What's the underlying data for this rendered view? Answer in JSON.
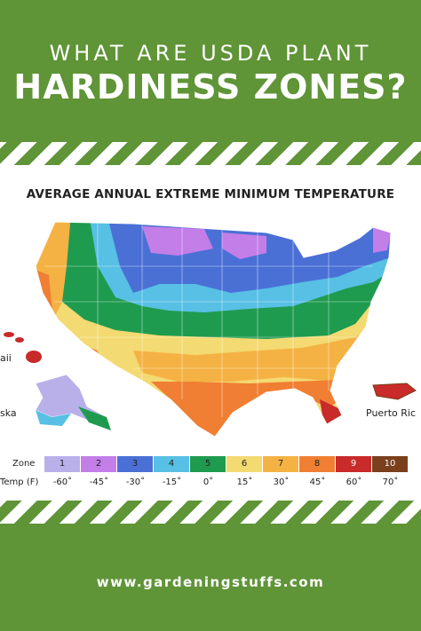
{
  "header": {
    "subtitle": "WHAT ARE USDA PLANT",
    "title": "HARDINESS ZONES?"
  },
  "map": {
    "title": "AVERAGE ANNUAL EXTREME MINIMUM TEMPERATURE",
    "labels": {
      "hawaii": "aii",
      "alaska": "ska",
      "puerto_rico": "Puerto Ric"
    }
  },
  "legend": {
    "zone_label": "Zone",
    "temp_label": "Temp (F)",
    "zones": [
      {
        "zone": "1",
        "temp": "-60˚",
        "color": "#b9b0ea"
      },
      {
        "zone": "2",
        "temp": "-45˚",
        "color": "#c37ee8"
      },
      {
        "zone": "3",
        "temp": "-30˚",
        "color": "#4a70d6"
      },
      {
        "zone": "4",
        "temp": "-15˚",
        "color": "#57c0e4"
      },
      {
        "zone": "5",
        "temp": "0˚",
        "color": "#1f9b4f"
      },
      {
        "zone": "6",
        "temp": "15˚",
        "color": "#f3da72"
      },
      {
        "zone": "7",
        "temp": "30˚",
        "color": "#f5b244"
      },
      {
        "zone": "8",
        "temp": "45˚",
        "color": "#f07f33"
      },
      {
        "zone": "9",
        "temp": "60˚",
        "color": "#c92a2a"
      },
      {
        "zone": "10",
        "temp": "70˚",
        "color": "#7a3f1c"
      }
    ]
  },
  "footer": {
    "url": "www.gardeningstuffs.com"
  }
}
